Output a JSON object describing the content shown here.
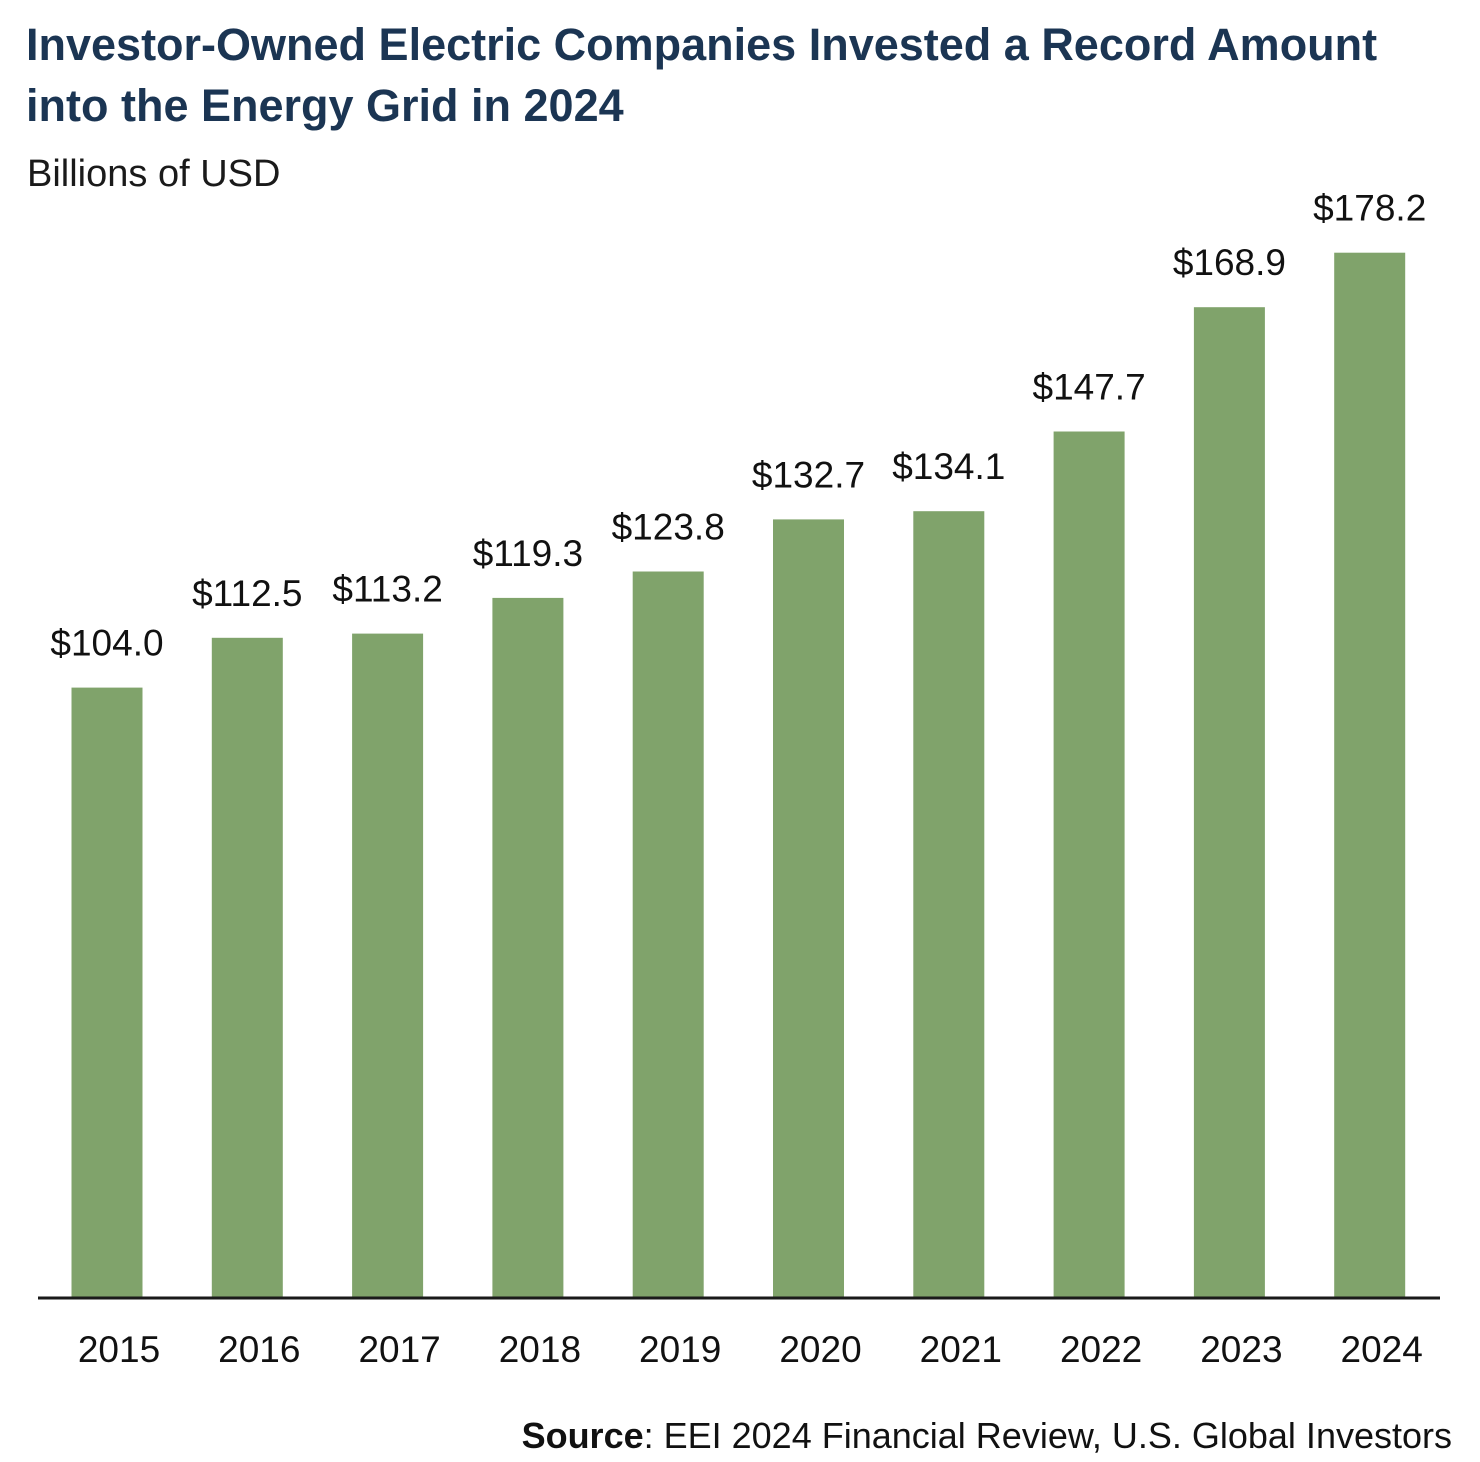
{
  "chart_data": {
    "type": "bar",
    "title": "Investor-Owned Electric Companies Invested a Record Amount into the Energy Grid in 2024",
    "subtitle": "Billions of USD",
    "categories": [
      "2015",
      "2016",
      "2017",
      "2018",
      "2019",
      "2020",
      "2021",
      "2022",
      "2023",
      "2024"
    ],
    "values": [
      104.0,
      112.5,
      113.2,
      119.3,
      123.8,
      132.7,
      134.1,
      147.7,
      168.9,
      178.2
    ],
    "value_labels": [
      "$104.0",
      "$112.5",
      "$113.2",
      "$119.3",
      "$123.8",
      "$132.7",
      "$134.1",
      "$147.7",
      "$168.9",
      "$178.2"
    ],
    "ylim": [
      0,
      180
    ],
    "grid": false,
    "bar_color": "#80a36b"
  },
  "title_color": "#1b3553",
  "source": {
    "label": "Source",
    "text": ": EEI 2024 Financial Review, U.S. Global Investors"
  }
}
